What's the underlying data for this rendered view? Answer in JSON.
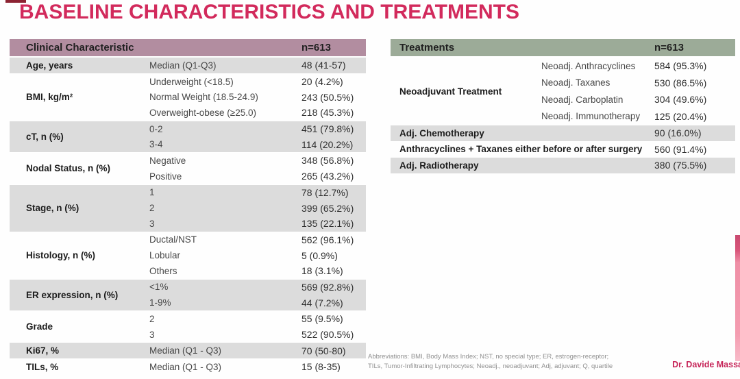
{
  "title": "BASELINE CHARACTERISTICS AND TREATMENTS",
  "colors": {
    "title_crimson": "#d22a5c",
    "left_header_bg": "#b28da0",
    "right_header_bg": "#9cab98",
    "row_shade_gray": "#dcdcdc",
    "credit_crimson": "#c62458",
    "accent_bar_pink": "#ef8fa6",
    "corner_mark_red": "#8c2332"
  },
  "left_table": {
    "header": {
      "label": "Clinical Characteristic",
      "n": "n=613"
    },
    "groups": [
      {
        "label": "Age, years",
        "rows": [
          {
            "sub": "Median (Q1-Q3)",
            "value": "48 (41-57)"
          }
        ]
      },
      {
        "label": "BMI, kg/m²",
        "rows": [
          {
            "sub": "Underweight (<18.5)",
            "value": "20 (4.2%)"
          },
          {
            "sub": "Normal Weight (18.5-24.9)",
            "value": "243 (50.5%)"
          },
          {
            "sub": "Overweight-obese (≥25.0)",
            "value": "218 (45.3%)"
          }
        ]
      },
      {
        "label": "cT, n (%)",
        "rows": [
          {
            "sub": "0-2",
            "value": "451 (79.8%)"
          },
          {
            "sub": "3-4",
            "value": "114 (20.2%)"
          }
        ]
      },
      {
        "label": "Nodal Status, n (%)",
        "rows": [
          {
            "sub": "Negative",
            "value": "348 (56.8%)"
          },
          {
            "sub": "Positive",
            "value": "265 (43.2%)"
          }
        ]
      },
      {
        "label": "Stage, n (%)",
        "rows": [
          {
            "sub": "1",
            "value": "78 (12.7%)"
          },
          {
            "sub": "2",
            "value": "399 (65.2%)"
          },
          {
            "sub": "3",
            "value": "135 (22.1%)"
          }
        ]
      },
      {
        "label": "Histology, n (%)",
        "rows": [
          {
            "sub": "Ductal/NST",
            "value": "562 (96.1%)"
          },
          {
            "sub": "Lobular",
            "value": "5 (0.9%)"
          },
          {
            "sub": "Others",
            "value": "18 (3.1%)"
          }
        ]
      },
      {
        "label": "ER expression, n (%)",
        "rows": [
          {
            "sub": "<1%",
            "value": "569 (92.8%)"
          },
          {
            "sub": "1-9%",
            "value": "44 (7.2%)"
          }
        ]
      },
      {
        "label": "Grade",
        "rows": [
          {
            "sub": "2",
            "value": "55 (9.5%)"
          },
          {
            "sub": "3",
            "value": "522 (90.5%)"
          }
        ]
      },
      {
        "label": "Ki67, %",
        "rows": [
          {
            "sub": "Median (Q1 - Q3)",
            "value": "70 (50-80)"
          }
        ]
      },
      {
        "label": "TILs, %",
        "rows": [
          {
            "sub": "Median (Q1 - Q3)",
            "value": "15 (8-35)"
          }
        ]
      }
    ]
  },
  "right_table": {
    "header": {
      "label": "Treatments",
      "n": "n=613"
    },
    "neoadjuvant_group": {
      "label": "Neoadjuvant Treatment",
      "rows": [
        {
          "sub": "Neoadj. Anthracyclines",
          "value": "584 (95.3%)"
        },
        {
          "sub": "Neoadj. Taxanes",
          "value": "530 (86.5%)"
        },
        {
          "sub": "Neoadj. Carboplatin",
          "value": "304 (49.6%)"
        },
        {
          "sub": "Neoadj. Immunotherapy",
          "value": "125 (20.4%)"
        }
      ]
    },
    "single_rows": [
      {
        "label": "Adj. Chemotherapy",
        "value": "90 (16.0%)"
      },
      {
        "label": "Anthracyclines + Taxanes either before or after surgery",
        "value": "560 (91.4%)"
      },
      {
        "label": "Adj. Radiotherapy",
        "value": "380 (75.5%)"
      }
    ]
  },
  "footer": {
    "abbreviations_line1": "Abbreviations: BMI, Body Mass Index; NST, no special type; ER, estrogen-receptor;",
    "abbreviations_line2": "TILs, Tumor-Infiltrating Lymphocytes; Neoadj., neoadjuvant; Adj, adjuvant; Q, quartile",
    "credit": "Dr. Davide Massa"
  }
}
